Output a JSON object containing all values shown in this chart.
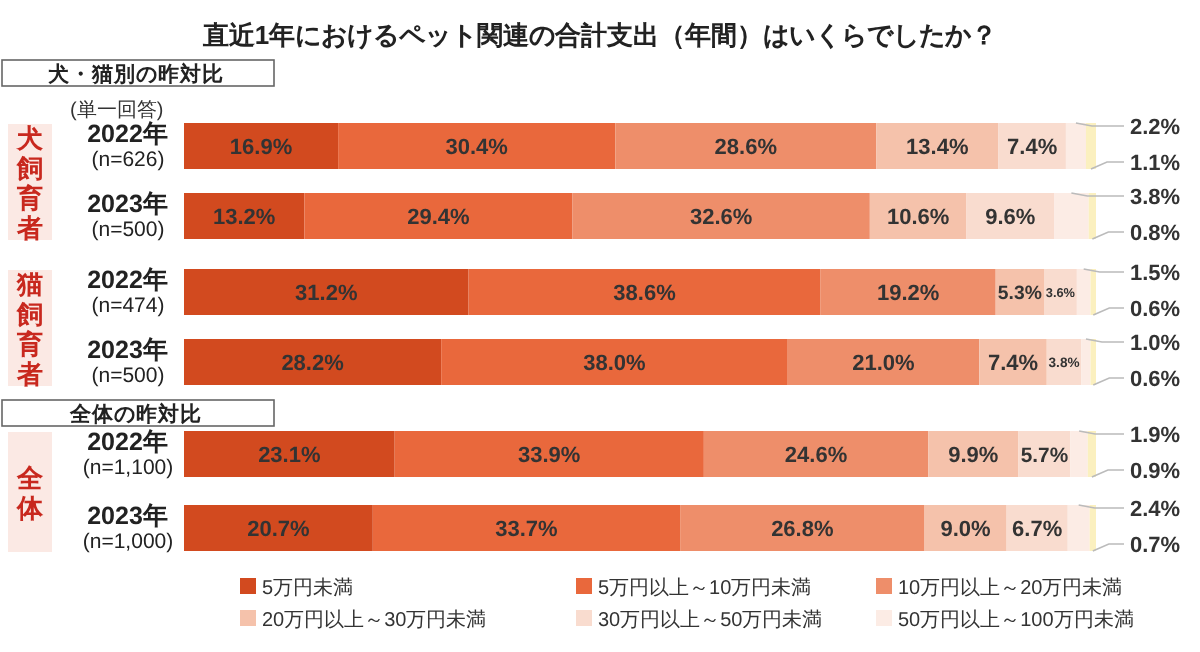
{
  "chart_data": {
    "type": "bar",
    "orientation": "horizontal",
    "stacked": true,
    "title": "直近1年におけるペット関連の合計支出（年間）はいくらでしたか？",
    "categories": [
      "2022年\n(n=626)",
      "2023年\n(n=500)",
      "2022年\n(n=474)",
      "2023年\n(n=500)",
      "2022年\n(n=1,100)",
      "2023年\n(n=1,000)"
    ],
    "series": [
      {
        "name": "5万円未満",
        "color": "#d24a1f",
        "values": [
          16.9,
          13.2,
          31.2,
          28.2,
          23.1,
          20.7
        ],
        "value_labels": [
          "16.9%",
          "13.2%",
          "31.2%",
          "28.2%",
          "23.1%",
          "20.7%"
        ]
      },
      {
        "name": "5万円以上～10万円未満",
        "color": "#e9683c",
        "values": [
          30.4,
          29.4,
          38.6,
          38.0,
          33.9,
          33.7
        ],
        "value_labels": [
          "30.4%",
          "29.4%",
          "38.6%",
          "38.0%",
          "33.9%",
          "33.7%"
        ]
      },
      {
        "name": "10万円以上～20万円未満",
        "color": "#ee8e6a",
        "values": [
          28.6,
          32.6,
          19.2,
          21.0,
          24.6,
          26.8
        ],
        "value_labels": [
          "28.6%",
          "32.6%",
          "19.2%",
          "21.0%",
          "24.6%",
          "26.8%"
        ]
      },
      {
        "name": "20万円以上～30万円未満",
        "color": "#f5c2ab",
        "values": [
          13.4,
          10.6,
          5.3,
          7.4,
          9.9,
          9.0
        ],
        "value_labels": [
          "13.4%",
          "10.6%",
          "5.3%",
          "7.4%",
          "9.9%",
          "9.0%"
        ]
      },
      {
        "name": "30万円以上～50万円未満",
        "color": "#f9dccf",
        "values": [
          7.4,
          9.6,
          3.6,
          3.8,
          5.7,
          6.7
        ],
        "value_labels": [
          "7.4%",
          "9.6%",
          "3.6%",
          "3.8%",
          "5.7%",
          "6.7%"
        ]
      },
      {
        "name": "50万円以上～100万円未満",
        "color": "#fcece5",
        "values": [
          2.2,
          3.8,
          1.5,
          1.0,
          1.9,
          2.4
        ],
        "value_labels": [
          "2.2%",
          "3.8%",
          "1.5%",
          "1.0%",
          "1.9%",
          "2.4%"
        ]
      },
      {
        "color": "#fbf0bf",
        "values": [
          1.1,
          0.8,
          0.6,
          0.6,
          0.9,
          0.7
        ],
        "value_labels": [
          "1.1%",
          "0.8%",
          "0.6%",
          "0.6%",
          "0.9%",
          "0.7%"
        ]
      }
    ],
    "annotations": [
      "犬・猫別の昨対比",
      "全体の昨対比",
      "(単一回答)",
      "犬飼育者",
      "猫飼育者",
      "全体"
    ],
    "legend": "bottom"
  }
}
